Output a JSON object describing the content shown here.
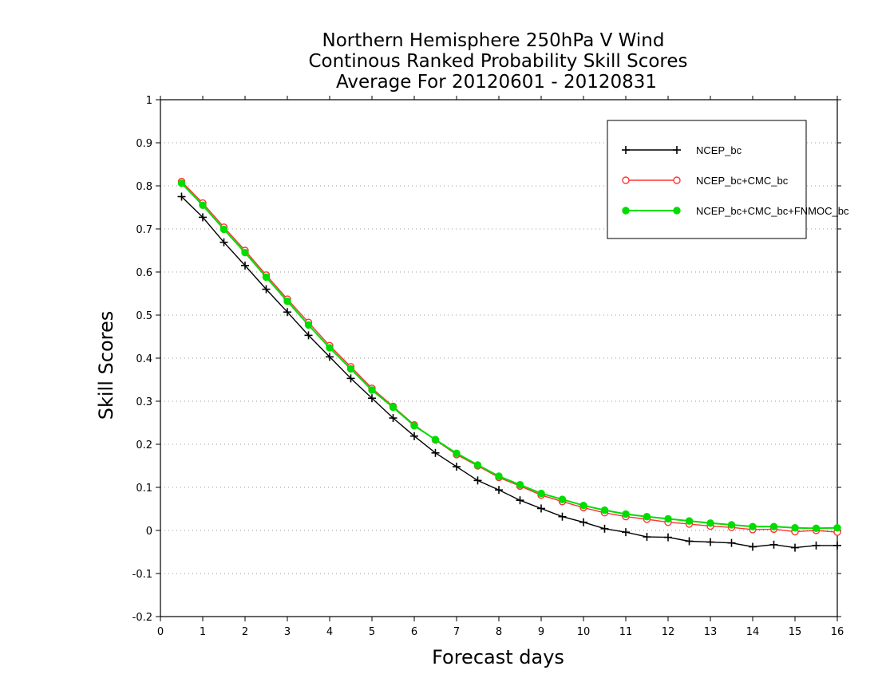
{
  "chart_data": {
    "type": "line",
    "title": [
      "Northern Hemisphere 250hPa V Wind",
      "Continous Ranked Probability Skill Scores",
      "Average For 20120601 - 20120831"
    ],
    "xlabel": "Forecast days",
    "ylabel": "Skill Scores",
    "xlim": [
      0,
      16
    ],
    "ylim": [
      -0.2,
      1
    ],
    "xticks": [
      "0",
      "1",
      "2",
      "3",
      "4",
      "5",
      "6",
      "7",
      "8",
      "9",
      "10",
      "11",
      "12",
      "13",
      "14",
      "15",
      "16"
    ],
    "yticks": [
      "1",
      "0.9",
      "0.8",
      "0.7",
      "0.6",
      "0.5",
      "0.4",
      "0.3",
      "0.2",
      "0.1",
      "0",
      "-0.1",
      "-0.2"
    ],
    "grid": "horizontal dotted",
    "legend_position": "top-right",
    "x": [
      0.5,
      1,
      1.5,
      2,
      2.5,
      3,
      3.5,
      4,
      4.5,
      5,
      5.5,
      6,
      6.5,
      7,
      7.5,
      8,
      8.5,
      9,
      9.5,
      10,
      10.5,
      11,
      11.5,
      12,
      12.5,
      13,
      13.5,
      14,
      14.5,
      15,
      15.5,
      16
    ],
    "series": [
      {
        "name": "NCEP_bc",
        "color": "#000000",
        "marker": "plus",
        "values": [
          0.775,
          0.727,
          0.669,
          0.615,
          0.56,
          0.507,
          0.453,
          0.403,
          0.353,
          0.307,
          0.261,
          0.219,
          0.18,
          0.148,
          0.116,
          0.094,
          0.07,
          0.051,
          0.032,
          0.019,
          0.004,
          -0.004,
          -0.015,
          -0.016,
          -0.025,
          -0.027,
          -0.029,
          -0.038,
          -0.033,
          -0.04,
          -0.035,
          -0.035
        ]
      },
      {
        "name": "NCEP_bc+CMC_bc",
        "color": "#ff3333",
        "marker": "open-circle",
        "values": [
          0.81,
          0.76,
          0.704,
          0.65,
          0.593,
          0.537,
          0.483,
          0.429,
          0.38,
          0.33,
          0.288,
          0.245,
          0.21,
          0.176,
          0.15,
          0.123,
          0.103,
          0.082,
          0.067,
          0.053,
          0.041,
          0.032,
          0.026,
          0.019,
          0.015,
          0.01,
          0.007,
          0.002,
          0.003,
          -0.003,
          0.0,
          -0.004
        ]
      },
      {
        "name": "NCEP_bc+CMC_bc+FNMOC_bc",
        "color": "#00dd00",
        "marker": "filled-circle",
        "values": [
          0.806,
          0.755,
          0.699,
          0.645,
          0.588,
          0.532,
          0.477,
          0.424,
          0.375,
          0.326,
          0.286,
          0.243,
          0.211,
          0.179,
          0.152,
          0.126,
          0.106,
          0.086,
          0.072,
          0.058,
          0.047,
          0.038,
          0.032,
          0.027,
          0.022,
          0.017,
          0.013,
          0.009,
          0.009,
          0.006,
          0.005,
          0.006
        ]
      }
    ]
  }
}
